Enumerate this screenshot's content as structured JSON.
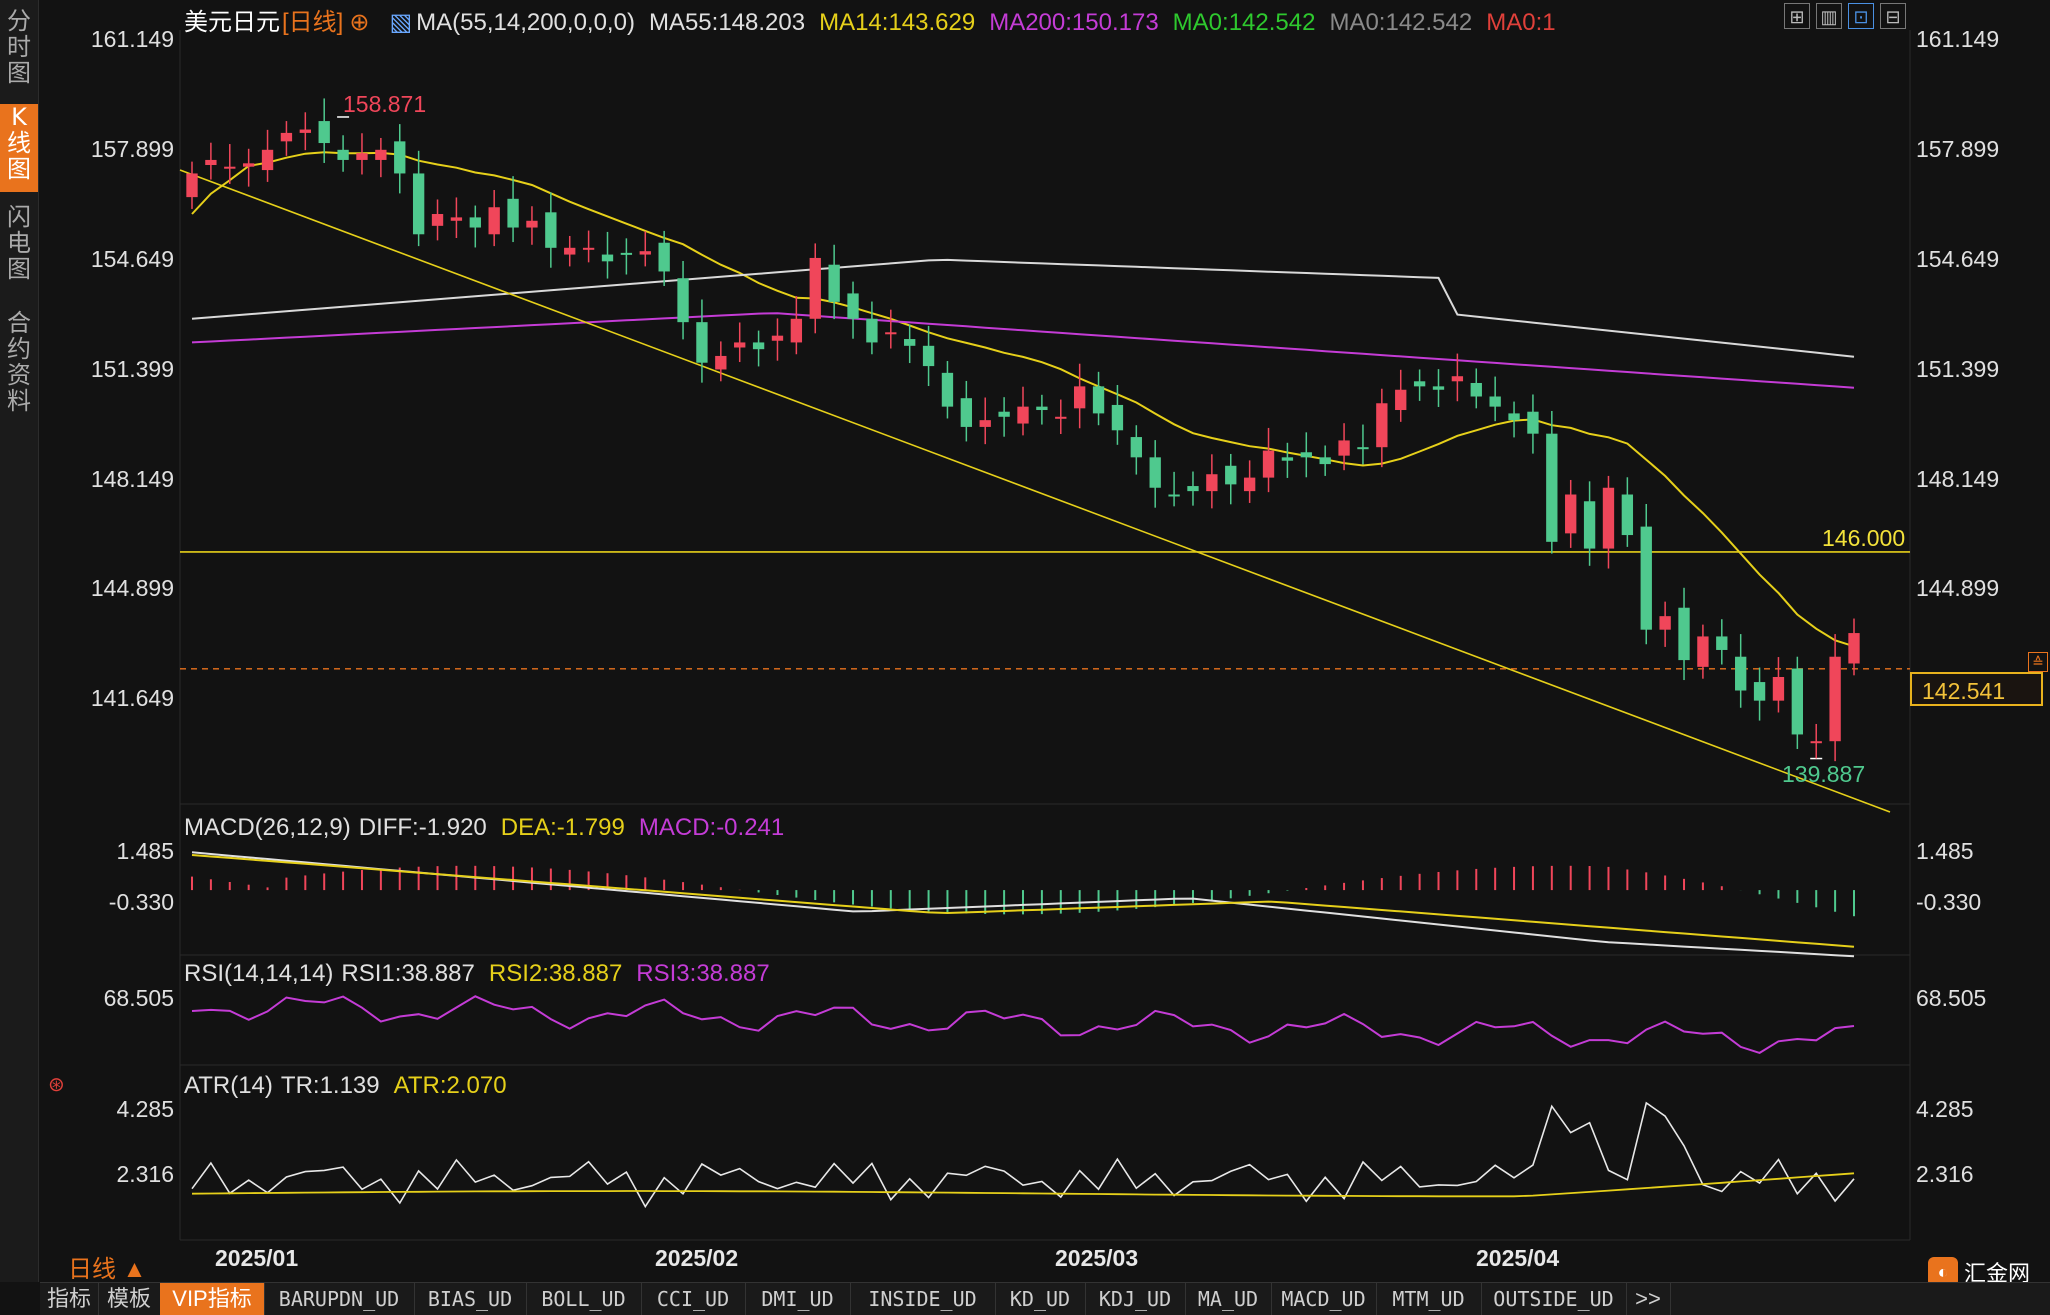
{
  "sidebar": {
    "tabs": [
      {
        "label": "分时图",
        "active": false
      },
      {
        "label": "K线图",
        "active": true
      },
      {
        "label": "闪电图",
        "active": false
      },
      {
        "label": "合约资料",
        "active": false
      }
    ]
  },
  "header": {
    "symbol": "美元日元",
    "period": "[日线]",
    "ma_params": "MA(55,14,200,0,0,0)",
    "ma55": "MA55:148.203",
    "ma14": "MA14:143.629",
    "ma200": "MA200:150.173",
    "ma0a": "MA0:142.542",
    "ma0b": "MA0:142.542",
    "ma0c": "MA0:1"
  },
  "price_axis": {
    "ticks": [
      "161.149",
      "157.899",
      "154.649",
      "151.399",
      "148.149",
      "144.899",
      "141.649"
    ]
  },
  "annotations": {
    "high": "158.871",
    "low": "139.887",
    "hline": "146.000",
    "current_price": "142.541"
  },
  "macd": {
    "title": "MACD(26,12,9)",
    "diff": "DIFF:-1.920",
    "dea": "DEA:-1.799",
    "macd": "MACD:-0.241",
    "ticks": [
      "1.485",
      "-0.330"
    ]
  },
  "rsi": {
    "title": "RSI(14,14,14)",
    "rsi1": "RSI1:38.887",
    "rsi2": "RSI2:38.887",
    "rsi3": "RSI3:38.887",
    "ticks": [
      "68.505"
    ]
  },
  "atr": {
    "title": "ATR(14)",
    "tr": "TR:1.139",
    "atr": "ATR:2.070",
    "ticks": [
      "4.285",
      "2.316"
    ]
  },
  "date_axis": [
    "2025/01",
    "2025/02",
    "2025/03",
    "2025/04"
  ],
  "period_toggle": "日线 ▲",
  "logo_text": "汇金网",
  "bottom_tabs": [
    "指标",
    "模板",
    "VIP指标",
    "BARUPDN_UD",
    "BIAS_UD",
    "BOLL_UD",
    "CCI_UD",
    "DMI_UD",
    "INSIDE_UD",
    "KD_UD",
    "KDJ_UD",
    "MA_UD",
    "MACD_UD",
    "MTM_UD",
    "OUTSIDE_UD",
    ">>"
  ],
  "colors": {
    "up": "#f0465a",
    "down": "#4fc98e",
    "ma14": "#e6d01a",
    "ma55": "#d9d9d9",
    "ma200": "#c43cd6",
    "trendline": "#e6d01a",
    "accent": "#e9731d"
  }
}
